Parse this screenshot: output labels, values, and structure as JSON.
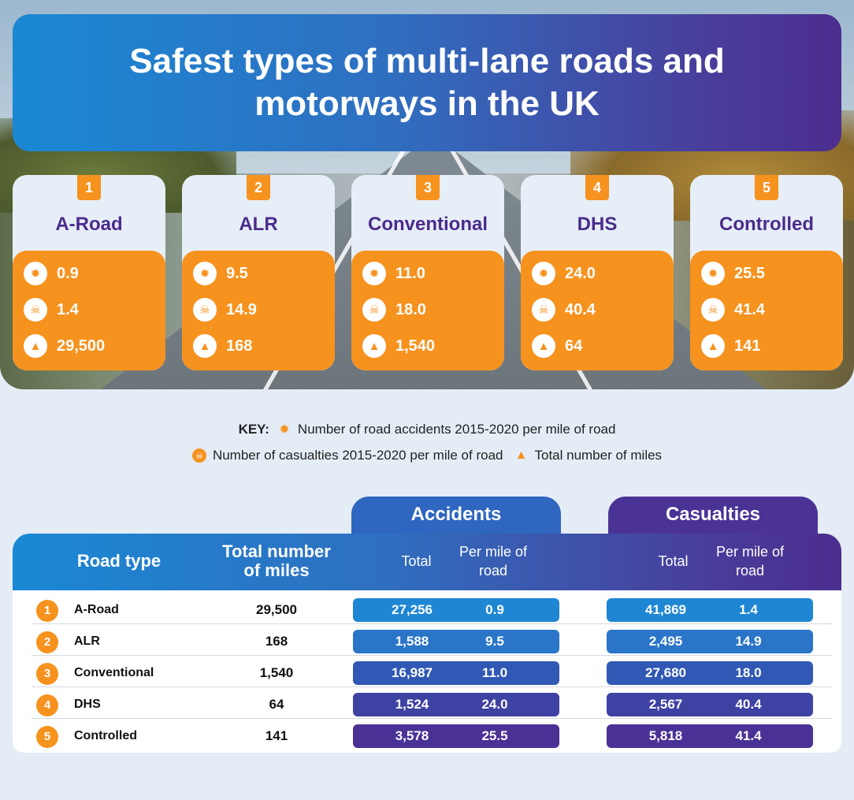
{
  "title": "Safest types of multi-lane roads and motorways in the UK",
  "colors": {
    "orange": "#f6921e",
    "purple": "#4b2b8c",
    "blue": "#1a88d4",
    "row_pills": [
      "#1e86d2",
      "#2a75c8",
      "#3058b4",
      "#3e42a2",
      "#4a3195"
    ]
  },
  "cards": [
    {
      "rank": "1",
      "name": "A-Road",
      "accidents": "0.9",
      "casualties": "1.4",
      "miles": "29,500"
    },
    {
      "rank": "2",
      "name": "ALR",
      "accidents": "9.5",
      "casualties": "14.9",
      "miles": "168"
    },
    {
      "rank": "3",
      "name": "Conventional",
      "accidents": "11.0",
      "casualties": "18.0",
      "miles": "1,540"
    },
    {
      "rank": "4",
      "name": "DHS",
      "accidents": "24.0",
      "casualties": "40.4",
      "miles": "64"
    },
    {
      "rank": "5",
      "name": "Controlled",
      "accidents": "25.5",
      "casualties": "41.4",
      "miles": "141"
    }
  ],
  "key": {
    "label": "KEY:",
    "accidents": "Number of road accidents 2015-2020 per mile of road",
    "casualties": "Number of casualties 2015-2020 per mile of road",
    "miles": "Total number of miles",
    "icons": [
      "car-crash-icon",
      "skull-icon",
      "road-icon"
    ]
  },
  "table": {
    "group_accidents": "Accidents",
    "group_casualties": "Casualties",
    "col_road_type": "Road type",
    "col_miles": "Total number of miles",
    "col_total": "Total",
    "col_per_mile": "Per mile of road",
    "rows": [
      {
        "rank": "1",
        "name": "A-Road",
        "miles": "29,500",
        "acc_total": "27,256",
        "acc_per_mile": "0.9",
        "cas_total": "41,869",
        "cas_per_mile": "1.4"
      },
      {
        "rank": "2",
        "name": "ALR",
        "miles": "168",
        "acc_total": "1,588",
        "acc_per_mile": "9.5",
        "cas_total": "2,495",
        "cas_per_mile": "14.9"
      },
      {
        "rank": "3",
        "name": "Conventional",
        "miles": "1,540",
        "acc_total": "16,987",
        "acc_per_mile": "11.0",
        "cas_total": "27,680",
        "cas_per_mile": "18.0"
      },
      {
        "rank": "4",
        "name": "DHS",
        "miles": "64",
        "acc_total": "1,524",
        "acc_per_mile": "24.0",
        "cas_total": "2,567",
        "cas_per_mile": "40.4"
      },
      {
        "rank": "5",
        "name": "Controlled",
        "miles": "141",
        "acc_total": "3,578",
        "acc_per_mile": "25.5",
        "cas_total": "5,818",
        "cas_per_mile": "41.4"
      }
    ]
  }
}
